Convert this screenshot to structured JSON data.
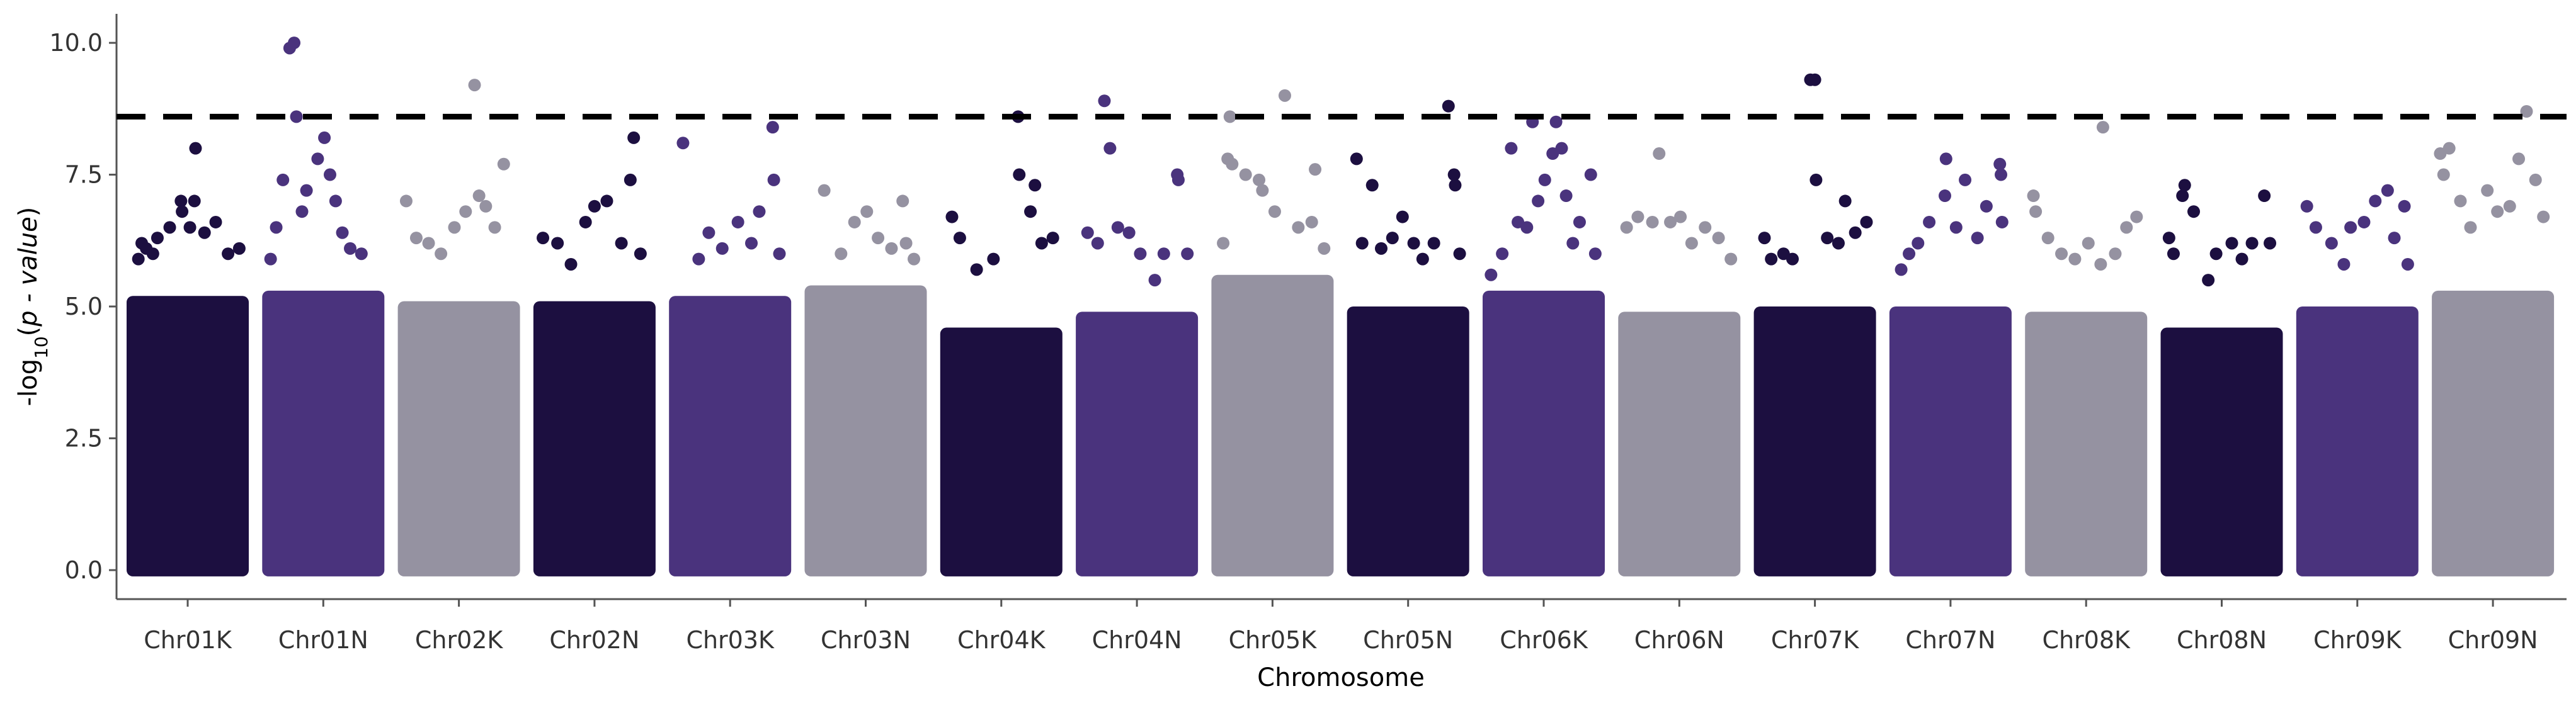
{
  "chart_data": {
    "type": "scatter",
    "xlabel": "Chromosome",
    "ylabel": "-log10(p - value)",
    "ylim": [
      -0.55,
      10.55
    ],
    "yticks": [
      0.0,
      2.5,
      5.0,
      7.5,
      10.0
    ],
    "ytick_labels": [
      "0.0",
      "2.5",
      "5.0",
      "7.5",
      "10.0"
    ],
    "threshold": 8.6,
    "threshold_style": "dashed",
    "grid": false,
    "colors": {
      "dark": "#1c0f40",
      "purple": "#4a337d",
      "gray": "#9592a1",
      "threshold": "#000000"
    },
    "categories": [
      "Chr01K",
      "Chr01N",
      "Chr02K",
      "Chr02N",
      "Chr03K",
      "Chr03N",
      "Chr04K",
      "Chr04N",
      "Chr05K",
      "Chr05N",
      "Chr06K",
      "Chr06N",
      "Chr07K",
      "Chr07N",
      "Chr08K",
      "Chr08N",
      "Chr09K",
      "Chr09N"
    ],
    "category_colors": [
      "dark",
      "purple",
      "gray",
      "dark",
      "purple",
      "gray",
      "dark",
      "purple",
      "gray",
      "dark",
      "purple",
      "gray",
      "dark",
      "purple",
      "gray",
      "dark",
      "purple",
      "gray"
    ],
    "bulk_top": [
      5.2,
      5.3,
      5.1,
      5.1,
      5.2,
      5.4,
      4.6,
      4.9,
      5.6,
      5.0,
      5.3,
      4.9,
      5.0,
      5.0,
      4.9,
      4.6,
      5.0,
      5.3
    ],
    "outliers": [
      [
        [
          0.6,
          5.9
        ],
        [
          0.9,
          6.2
        ],
        [
          1.3,
          6.1
        ],
        [
          1.9,
          6.0
        ],
        [
          2.3,
          6.3
        ],
        [
          3.4,
          6.5
        ],
        [
          4.4,
          7.0
        ],
        [
          4.5,
          6.8
        ],
        [
          5.2,
          6.5
        ],
        [
          5.6,
          7.0
        ],
        [
          5.7,
          8.0
        ],
        [
          6.5,
          6.4
        ],
        [
          7.5,
          6.6
        ],
        [
          8.6,
          6.0
        ],
        [
          9.6,
          6.1
        ]
      ],
      [
        [
          0.3,
          5.9
        ],
        [
          0.8,
          6.5
        ],
        [
          1.4,
          7.4
        ],
        [
          2.0,
          9.9
        ],
        [
          2.4,
          10.0
        ],
        [
          2.6,
          8.6
        ],
        [
          3.1,
          6.8
        ],
        [
          3.5,
          7.2
        ],
        [
          4.5,
          7.8
        ],
        [
          5.1,
          8.2
        ],
        [
          5.6,
          7.5
        ],
        [
          6.1,
          7.0
        ],
        [
          6.7,
          6.4
        ],
        [
          7.4,
          6.1
        ],
        [
          8.4,
          6.0
        ]
      ],
      [
        [
          0.3,
          7.0
        ],
        [
          1.2,
          6.3
        ],
        [
          2.3,
          6.2
        ],
        [
          3.4,
          6.0
        ],
        [
          4.6,
          6.5
        ],
        [
          5.6,
          6.8
        ],
        [
          6.4,
          9.2
        ],
        [
          6.8,
          7.1
        ],
        [
          7.4,
          6.9
        ],
        [
          8.2,
          6.5
        ],
        [
          9.0,
          7.7
        ]
      ],
      [
        [
          0.4,
          6.3
        ],
        [
          1.7,
          6.2
        ],
        [
          2.9,
          5.8
        ],
        [
          4.2,
          6.6
        ],
        [
          5.0,
          6.9
        ],
        [
          6.1,
          7.0
        ],
        [
          7.4,
          6.2
        ],
        [
          8.2,
          7.4
        ],
        [
          8.5,
          8.2
        ],
        [
          9.1,
          6.0
        ]
      ],
      [
        [
          0.8,
          8.1
        ],
        [
          2.2,
          5.9
        ],
        [
          3.1,
          6.4
        ],
        [
          4.3,
          6.1
        ],
        [
          5.7,
          6.6
        ],
        [
          6.9,
          6.2
        ],
        [
          7.6,
          6.8
        ],
        [
          8.8,
          8.4
        ],
        [
          8.9,
          7.4
        ],
        [
          9.4,
          6.0
        ]
      ],
      [
        [
          1.3,
          7.2
        ],
        [
          2.8,
          6.0
        ],
        [
          4.0,
          6.6
        ],
        [
          5.1,
          6.8
        ],
        [
          6.1,
          6.3
        ],
        [
          7.3,
          6.1
        ],
        [
          8.3,
          7.0
        ],
        [
          8.6,
          6.2
        ],
        [
          9.3,
          5.9
        ]
      ],
      [
        [
          0.6,
          6.7
        ],
        [
          1.3,
          6.3
        ],
        [
          2.8,
          5.7
        ],
        [
          4.3,
          5.9
        ],
        [
          6.5,
          8.6
        ],
        [
          6.6,
          7.5
        ],
        [
          7.6,
          6.8
        ],
        [
          8.0,
          7.3
        ],
        [
          8.6,
          6.2
        ],
        [
          9.6,
          6.3
        ]
      ],
      [
        [
          0.6,
          6.4
        ],
        [
          1.5,
          6.2
        ],
        [
          2.1,
          8.9
        ],
        [
          2.6,
          8.0
        ],
        [
          3.3,
          6.5
        ],
        [
          4.3,
          6.4
        ],
        [
          5.3,
          6.0
        ],
        [
          6.6,
          5.5
        ],
        [
          7.4,
          6.0
        ],
        [
          8.6,
          7.5
        ],
        [
          8.7,
          7.4
        ],
        [
          9.5,
          6.0
        ]
      ],
      [
        [
          0.6,
          6.2
        ],
        [
          1.0,
          7.8
        ],
        [
          1.2,
          8.6
        ],
        [
          1.4,
          7.7
        ],
        [
          2.6,
          7.5
        ],
        [
          3.8,
          7.4
        ],
        [
          4.1,
          7.2
        ],
        [
          5.2,
          6.8
        ],
        [
          6.1,
          9.0
        ],
        [
          7.3,
          6.5
        ],
        [
          8.5,
          6.6
        ],
        [
          8.8,
          7.6
        ],
        [
          9.6,
          6.1
        ]
      ],
      [
        [
          0.4,
          7.8
        ],
        [
          0.9,
          6.2
        ],
        [
          1.8,
          7.3
        ],
        [
          2.6,
          6.1
        ],
        [
          3.6,
          6.3
        ],
        [
          4.5,
          6.7
        ],
        [
          5.5,
          6.2
        ],
        [
          6.3,
          5.9
        ],
        [
          7.3,
          6.2
        ],
        [
          8.6,
          8.8
        ],
        [
          9.1,
          7.5
        ],
        [
          9.2,
          7.3
        ],
        [
          9.6,
          6.0
        ]
      ],
      [
        [
          0.3,
          5.6
        ],
        [
          1.3,
          6.0
        ],
        [
          2.1,
          8.0
        ],
        [
          2.7,
          6.6
        ],
        [
          3.5,
          6.5
        ],
        [
          4.0,
          8.5
        ],
        [
          4.5,
          7.0
        ],
        [
          5.1,
          7.4
        ],
        [
          5.8,
          7.9
        ],
        [
          6.1,
          8.5
        ],
        [
          6.6,
          8.0
        ],
        [
          7.0,
          7.1
        ],
        [
          7.6,
          6.2
        ],
        [
          8.2,
          6.6
        ],
        [
          9.2,
          7.5
        ],
        [
          9.6,
          6.0
        ]
      ],
      [
        [
          0.3,
          6.5
        ],
        [
          1.3,
          6.7
        ],
        [
          2.6,
          6.6
        ],
        [
          3.2,
          7.9
        ],
        [
          4.2,
          6.6
        ],
        [
          5.1,
          6.7
        ],
        [
          6.1,
          6.2
        ],
        [
          7.3,
          6.5
        ],
        [
          8.5,
          6.3
        ],
        [
          9.6,
          5.9
        ]
      ],
      [
        [
          0.5,
          6.3
        ],
        [
          1.1,
          5.9
        ],
        [
          2.2,
          6.0
        ],
        [
          3.0,
          5.9
        ],
        [
          4.6,
          9.3
        ],
        [
          5.0,
          9.3
        ],
        [
          5.1,
          7.4
        ],
        [
          6.1,
          6.3
        ],
        [
          7.1,
          6.2
        ],
        [
          7.7,
          7.0
        ],
        [
          8.6,
          6.4
        ],
        [
          9.6,
          6.6
        ]
      ],
      [
        [
          0.6,
          5.7
        ],
        [
          1.3,
          6.0
        ],
        [
          2.1,
          6.2
        ],
        [
          3.1,
          6.6
        ],
        [
          4.5,
          7.1
        ],
        [
          4.6,
          7.8
        ],
        [
          5.5,
          6.5
        ],
        [
          6.3,
          7.4
        ],
        [
          7.4,
          6.3
        ],
        [
          8.2,
          6.9
        ],
        [
          9.4,
          7.7
        ],
        [
          9.5,
          7.5
        ],
        [
          9.6,
          6.6
        ]
      ],
      [
        [
          0.3,
          7.1
        ],
        [
          0.5,
          6.8
        ],
        [
          1.6,
          6.3
        ],
        [
          2.8,
          6.0
        ],
        [
          4.0,
          5.9
        ],
        [
          5.2,
          6.2
        ],
        [
          6.3,
          5.8
        ],
        [
          6.5,
          8.4
        ],
        [
          7.6,
          6.0
        ],
        [
          8.6,
          6.5
        ],
        [
          9.5,
          6.7
        ]
      ],
      [
        [
          0.3,
          6.3
        ],
        [
          0.7,
          6.0
        ],
        [
          1.5,
          7.1
        ],
        [
          1.7,
          7.3
        ],
        [
          2.5,
          6.8
        ],
        [
          3.8,
          5.5
        ],
        [
          4.5,
          6.0
        ],
        [
          5.9,
          6.2
        ],
        [
          6.8,
          5.9
        ],
        [
          7.7,
          6.2
        ],
        [
          8.8,
          7.1
        ],
        [
          9.3,
          6.2
        ]
      ],
      [
        [
          0.5,
          6.9
        ],
        [
          1.3,
          6.5
        ],
        [
          2.7,
          6.2
        ],
        [
          3.8,
          5.8
        ],
        [
          4.4,
          6.5
        ],
        [
          5.6,
          6.6
        ],
        [
          6.6,
          7.0
        ],
        [
          7.7,
          7.2
        ],
        [
          8.3,
          6.3
        ],
        [
          9.2,
          6.9
        ],
        [
          9.5,
          5.8
        ]
      ],
      [
        [
          0.3,
          7.9
        ],
        [
          0.6,
          7.5
        ],
        [
          1.1,
          8.0
        ],
        [
          2.1,
          7.0
        ],
        [
          3.0,
          6.5
        ],
        [
          4.5,
          7.2
        ],
        [
          5.4,
          6.8
        ],
        [
          6.5,
          6.9
        ],
        [
          7.3,
          7.8
        ],
        [
          8.0,
          8.7
        ],
        [
          8.8,
          7.4
        ],
        [
          9.5,
          6.7
        ]
      ]
    ]
  }
}
